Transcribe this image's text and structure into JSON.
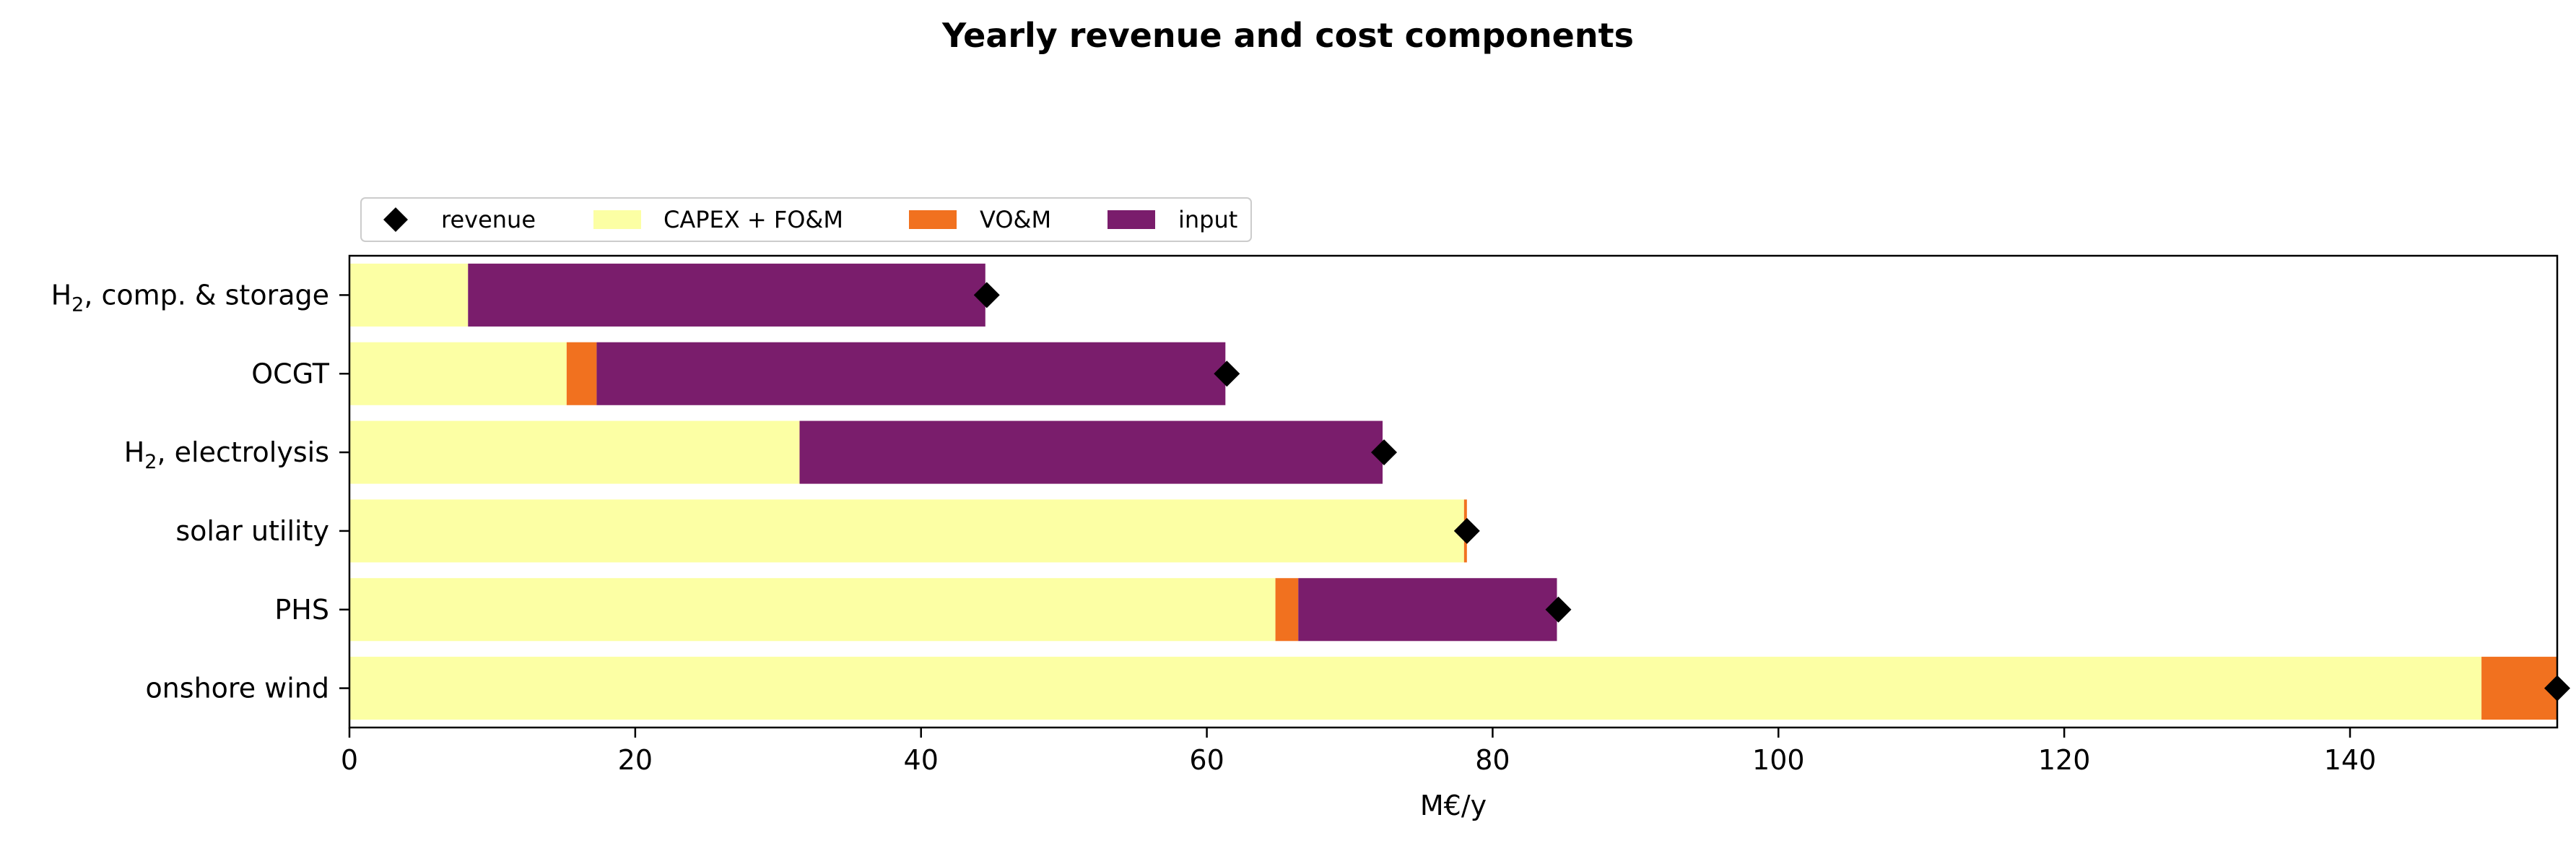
{
  "chart_data": {
    "type": "bar",
    "orientation": "horizontal",
    "stacked": true,
    "title": "Yearly revenue and cost components",
    "xlabel": "M€/y",
    "ylabel": "",
    "xlim": [
      0,
      154.5
    ],
    "xticks": [
      0,
      20,
      40,
      60,
      80,
      100,
      120,
      140
    ],
    "categories": [
      {
        "label": "H",
        "sub": "2",
        "rest": ", comp. & storage"
      },
      {
        "label": "OCGT",
        "sub": "",
        "rest": ""
      },
      {
        "label": "H",
        "sub": "2",
        "rest": ", electrolysis"
      },
      {
        "label": "solar utility",
        "sub": "",
        "rest": ""
      },
      {
        "label": "PHS",
        "sub": "",
        "rest": ""
      },
      {
        "label": "onshore wind",
        "sub": "",
        "rest": ""
      }
    ],
    "series": [
      {
        "name": "CAPEX + FO&M",
        "color": "#fcffa4",
        "values": [
          8.3,
          15.2,
          31.5,
          78.0,
          64.8,
          149.2
        ]
      },
      {
        "name": "VO&M",
        "color": "#f1711f",
        "values": [
          0.0,
          2.1,
          0.0,
          0.2,
          1.6,
          5.3
        ]
      },
      {
        "name": "input",
        "color": "#7a1d6c",
        "values": [
          36.2,
          44.0,
          40.8,
          0.0,
          18.1,
          0.0
        ]
      }
    ],
    "revenue": {
      "name": "revenue",
      "color": "#000000",
      "values": [
        44.6,
        61.4,
        72.4,
        78.2,
        84.6,
        154.5
      ]
    },
    "legend": {
      "placement": "top-left",
      "order": [
        "revenue",
        "CAPEX + FO&M",
        "VO&M",
        "input"
      ]
    },
    "grid": false
  }
}
